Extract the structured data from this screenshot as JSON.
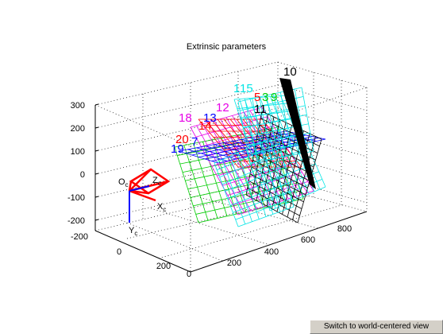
{
  "figure": {
    "title": "Extrinsic parameters",
    "camera_labels": {
      "origin": "O",
      "origin_sub": "c",
      "x": "X",
      "x_sub": "c",
      "y": "Y",
      "y_sub": "c",
      "z": "Z",
      "z_sub": "c"
    }
  },
  "axes": {
    "z_ticks": [
      "300",
      "200",
      "100",
      "0",
      "-100",
      "-200"
    ],
    "x_ticks": [
      "0",
      "200",
      "400",
      "600",
      "800"
    ],
    "y_ticks": [
      "-200",
      "0",
      "200"
    ]
  },
  "boards": [
    {
      "label": "10",
      "color": "#000000"
    },
    {
      "label": "1",
      "color": "#00e5e5"
    },
    {
      "label": "15",
      "color": "#00e5e5"
    },
    {
      "label": "5",
      "color": "#ff0000"
    },
    {
      "label": "3",
      "color": "#00cc00"
    },
    {
      "label": "9",
      "color": "#00cc00"
    },
    {
      "label": "11",
      "color": "#000000"
    },
    {
      "label": "12",
      "color": "#e600e6"
    },
    {
      "label": "18",
      "color": "#e600e6"
    },
    {
      "label": "13",
      "color": "#0000ff"
    },
    {
      "label": "14",
      "color": "#ff0000"
    },
    {
      "label": "20",
      "color": "#ff0000"
    },
    {
      "label": "7",
      "color": "#0000ff"
    },
    {
      "label": "19",
      "color": "#0000ff"
    }
  ],
  "colors": {
    "red": "#ff0000",
    "blue": "#0000ff",
    "cyan": "#00e5e5",
    "green": "#00cc00",
    "magenta": "#e600e6",
    "black": "#000000"
  },
  "button": {
    "label": "Switch to world-centered view"
  }
}
